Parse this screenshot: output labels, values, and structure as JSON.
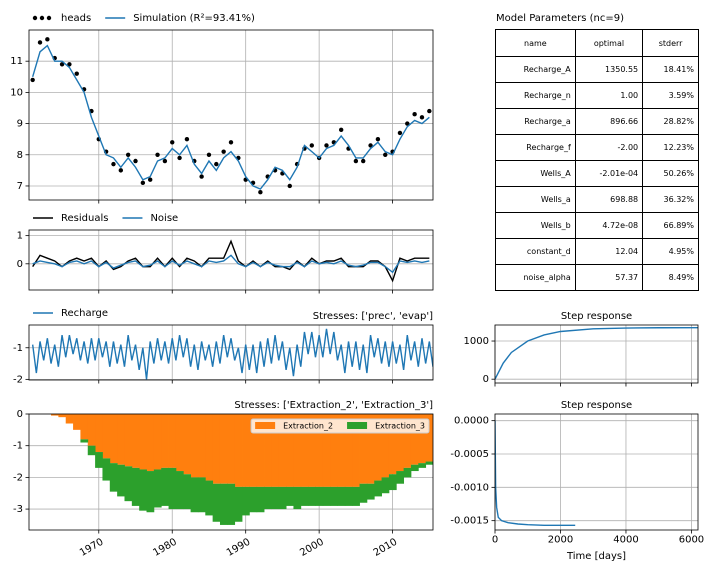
{
  "chart_data": [
    {
      "type": "line",
      "x": [
        1961,
        1962,
        1963,
        1964,
        1965,
        1966,
        1967,
        1968,
        1969,
        1970,
        1971,
        1972,
        1973,
        1974,
        1975,
        1976,
        1977,
        1978,
        1979,
        1980,
        1981,
        1982,
        1983,
        1984,
        1985,
        1986,
        1987,
        1988,
        1989,
        1990,
        1991,
        1992,
        1993,
        1994,
        1995,
        1996,
        1997,
        1998,
        1999,
        2000,
        2001,
        2002,
        2003,
        2004,
        2005,
        2006,
        2007,
        2008,
        2009,
        2010,
        2011,
        2012,
        2013,
        2014,
        2015
      ],
      "series": [
        {
          "name": "heads",
          "type": "scatter",
          "color": "#000000",
          "values": [
            10.4,
            11.6,
            11.7,
            11.1,
            10.9,
            10.9,
            10.6,
            10.1,
            9.4,
            8.5,
            8.1,
            7.7,
            7.5,
            8.0,
            7.8,
            7.1,
            7.2,
            8.0,
            7.8,
            8.4,
            7.9,
            8.5,
            7.8,
            7.3,
            8.0,
            7.7,
            8.1,
            8.4,
            7.9,
            7.2,
            7.1,
            6.8,
            7.3,
            7.5,
            7.4,
            7.0,
            7.7,
            8.2,
            8.3,
            7.9,
            8.3,
            8.4,
            8.8,
            8.2,
            7.8,
            7.8,
            8.3,
            8.5,
            8.0,
            8.1,
            8.7,
            9.0,
            9.3,
            9.2,
            9.4
          ]
        },
        {
          "name": "Simulation (R²=93.41%)",
          "type": "line",
          "color": "#1f77b4",
          "values": [
            10.5,
            11.3,
            11.5,
            11.0,
            11.0,
            10.8,
            10.4,
            10.0,
            9.2,
            8.6,
            8.0,
            7.9,
            7.6,
            7.9,
            7.6,
            7.2,
            7.3,
            7.8,
            7.9,
            8.2,
            8.0,
            8.3,
            7.7,
            7.4,
            7.8,
            7.5,
            7.9,
            8.1,
            7.8,
            7.3,
            7.0,
            6.9,
            7.2,
            7.6,
            7.5,
            7.2,
            7.6,
            8.3,
            8.1,
            7.9,
            8.2,
            8.3,
            8.6,
            8.3,
            7.9,
            7.9,
            8.2,
            8.4,
            8.1,
            8.0,
            8.5,
            8.9,
            9.1,
            9.0,
            9.2
          ]
        }
      ],
      "xlim": [
        1960.5,
        2015.5
      ],
      "ylim": [
        6.55,
        12.0
      ],
      "yticks": [
        7,
        8,
        9,
        10,
        11
      ],
      "grid": true,
      "legend": "above"
    },
    {
      "type": "line",
      "x": [
        1961,
        1962,
        1963,
        1964,
        1965,
        1966,
        1967,
        1968,
        1969,
        1970,
        1971,
        1972,
        1973,
        1974,
        1975,
        1976,
        1977,
        1978,
        1979,
        1980,
        1981,
        1982,
        1983,
        1984,
        1985,
        1986,
        1987,
        1988,
        1989,
        1990,
        1991,
        1992,
        1993,
        1994,
        1995,
        1996,
        1997,
        1998,
        1999,
        2000,
        2001,
        2002,
        2003,
        2004,
        2005,
        2006,
        2007,
        2008,
        2009,
        2010,
        2011,
        2012,
        2013,
        2014,
        2015
      ],
      "series": [
        {
          "name": "Residuals",
          "color": "#000000",
          "values": [
            -0.1,
            0.3,
            0.2,
            0.1,
            -0.1,
            0.1,
            0.2,
            0.1,
            0.2,
            -0.1,
            0.1,
            -0.2,
            -0.1,
            0.1,
            0.2,
            -0.1,
            -0.1,
            0.2,
            -0.1,
            0.2,
            -0.1,
            0.2,
            0.1,
            -0.1,
            0.2,
            0.2,
            0.2,
            0.8,
            0.1,
            -0.1,
            0.1,
            -0.1,
            0.1,
            -0.1,
            -0.1,
            -0.2,
            0.1,
            -0.1,
            0.2,
            0.0,
            0.1,
            0.1,
            0.2,
            -0.1,
            -0.1,
            -0.1,
            0.1,
            0.1,
            -0.1,
            -0.6,
            0.2,
            0.1,
            0.2,
            0.2,
            0.2
          ]
        },
        {
          "name": "Noise",
          "color": "#1f77b4",
          "values": [
            0.0,
            0.1,
            0.05,
            0.0,
            -0.1,
            0.05,
            0.1,
            0.0,
            0.1,
            -0.1,
            0.05,
            -0.15,
            -0.05,
            0.05,
            0.1,
            -0.1,
            -0.05,
            0.1,
            -0.1,
            0.1,
            -0.05,
            0.1,
            0.0,
            -0.1,
            0.1,
            0.05,
            0.1,
            0.3,
            0.0,
            -0.1,
            0.05,
            -0.1,
            0.05,
            -0.05,
            -0.1,
            -0.1,
            0.05,
            -0.1,
            0.1,
            0.0,
            0.05,
            0.0,
            0.1,
            -0.05,
            -0.1,
            -0.05,
            0.05,
            0.05,
            -0.1,
            -0.3,
            0.1,
            0.05,
            0.1,
            0.05,
            0.1
          ]
        }
      ],
      "xlim": [
        1960.5,
        2015.5
      ],
      "ylim": [
        -0.93,
        1.2
      ],
      "yticks": [
        0,
        1
      ],
      "grid": true,
      "legend": "above"
    },
    {
      "type": "line",
      "title": "Stresses: ['prec', 'evap']",
      "title_loc": "right",
      "x": [
        1961,
        1961.5,
        1962,
        1962.5,
        1963,
        1963.5,
        1964,
        1964.5,
        1965,
        1965.5,
        1966,
        1966.5,
        1967,
        1967.5,
        1968,
        1968.5,
        1969,
        1969.5,
        1970,
        1970.5,
        1971,
        1971.5,
        1972,
        1972.5,
        1973,
        1973.5,
        1974,
        1974.5,
        1975,
        1975.5,
        1976,
        1976.5,
        1977,
        1977.5,
        1978,
        1978.5,
        1979,
        1979.5,
        1980,
        1980.5,
        1981,
        1981.5,
        1982,
        1982.5,
        1983,
        1983.5,
        1984,
        1984.5,
        1985,
        1985.5,
        1986,
        1986.5,
        1987,
        1987.5,
        1988,
        1988.5,
        1989,
        1989.5,
        1990,
        1990.5,
        1991,
        1991.5,
        1992,
        1992.5,
        1993,
        1993.5,
        1994,
        1994.5,
        1995,
        1995.5,
        1996,
        1996.5,
        1997,
        1997.5,
        1998,
        1998.5,
        1999,
        1999.5,
        2000,
        2000.5,
        2001,
        2001.5,
        2002,
        2002.5,
        2003,
        2003.5,
        2004,
        2004.5,
        2005,
        2005.5,
        2006,
        2006.5,
        2007,
        2007.5,
        2008,
        2008.5,
        2009,
        2009.5,
        2010,
        2010.5,
        2011,
        2011.5,
        2012,
        2012.5,
        2013,
        2013.5,
        2014,
        2014.5,
        2015,
        2015.5
      ],
      "series": [
        {
          "name": "Recharge",
          "color": "#1f77b4",
          "values": [
            -0.9,
            -1.8,
            -0.8,
            -1.4,
            -0.7,
            -1.5,
            -0.9,
            -1.6,
            -0.6,
            -1.3,
            -0.6,
            -1.2,
            -0.7,
            -1.4,
            -0.8,
            -1.5,
            -0.7,
            -1.4,
            -0.7,
            -1.3,
            -0.8,
            -1.6,
            -0.8,
            -1.5,
            -0.9,
            -1.6,
            -0.6,
            -1.4,
            -0.9,
            -1.7,
            -1.0,
            -2.0,
            -0.8,
            -1.5,
            -0.7,
            -1.4,
            -0.8,
            -1.5,
            -0.7,
            -1.4,
            -0.6,
            -1.3,
            -0.7,
            -1.6,
            -0.9,
            -1.7,
            -0.8,
            -1.4,
            -0.9,
            -1.6,
            -0.8,
            -1.5,
            -0.6,
            -1.3,
            -0.7,
            -1.4,
            -1.0,
            -1.8,
            -0.9,
            -1.7,
            -0.9,
            -1.8,
            -0.8,
            -1.6,
            -0.7,
            -1.5,
            -0.6,
            -1.4,
            -0.8,
            -1.7,
            -1.0,
            -1.9,
            -0.9,
            -1.6,
            -0.5,
            -1.2,
            -0.5,
            -1.3,
            -0.6,
            -1.3,
            -0.4,
            -1.2,
            -0.5,
            -1.4,
            -0.9,
            -1.8,
            -0.8,
            -1.6,
            -0.8,
            -1.7,
            -0.9,
            -1.8,
            -0.6,
            -1.3,
            -0.7,
            -1.5,
            -0.8,
            -1.6,
            -0.8,
            -1.5,
            -0.9,
            -1.7,
            -0.6,
            -1.4,
            -0.8,
            -1.6,
            -0.7,
            -1.5,
            -0.8,
            -1.6
          ]
        }
      ],
      "xlim": [
        1960.5,
        2015.5
      ],
      "ylim": [
        -2.02,
        -0.28
      ],
      "yticks": [
        -2,
        -1
      ],
      "grid": true,
      "legend": "above"
    },
    {
      "type": "line",
      "title": "Step response",
      "title_loc": "center",
      "x": [
        0,
        250,
        500,
        1000,
        1500,
        2000,
        3000,
        4000,
        5000,
        6200
      ],
      "series": [
        {
          "name": "Step response",
          "color": "#1f77b4",
          "values": [
            0,
            420,
            700,
            1000,
            1160,
            1250,
            1320,
            1340,
            1348,
            1350
          ]
        }
      ],
      "xlim": [
        0,
        6200
      ],
      "ylim": [
        -100,
        1420
      ],
      "yticks": [
        0,
        1000
      ],
      "grid": true
    },
    {
      "type": "area",
      "stacked": true,
      "title": "Stresses: ['Extraction_2', 'Extraction_3']",
      "title_loc": "right",
      "x": [
        1961,
        1962,
        1963,
        1964,
        1965,
        1966,
        1967,
        1968,
        1969,
        1970,
        1971,
        1972,
        1973,
        1974,
        1975,
        1976,
        1977,
        1978,
        1979,
        1980,
        1981,
        1982,
        1983,
        1984,
        1985,
        1986,
        1987,
        1988,
        1989,
        1990,
        1991,
        1992,
        1993,
        1994,
        1995,
        1996,
        1997,
        1998,
        1999,
        2000,
        2001,
        2002,
        2003,
        2004,
        2005,
        2006,
        2007,
        2008,
        2009,
        2010,
        2011,
        2012,
        2013,
        2014,
        2015
      ],
      "series": [
        {
          "name": "Extraction_2",
          "color": "#ff7f0e",
          "values": [
            0,
            0,
            0,
            -0.05,
            -0.1,
            -0.3,
            -0.5,
            -0.8,
            -1.0,
            -1.2,
            -1.4,
            -1.55,
            -1.6,
            -1.65,
            -1.7,
            -1.75,
            -1.8,
            -1.75,
            -1.7,
            -1.7,
            -1.8,
            -1.9,
            -2.0,
            -2.0,
            -2.1,
            -2.2,
            -2.2,
            -2.2,
            -2.3,
            -2.3,
            -2.3,
            -2.3,
            -2.3,
            -2.3,
            -2.3,
            -2.3,
            -2.3,
            -2.3,
            -2.3,
            -2.3,
            -2.3,
            -2.3,
            -2.3,
            -2.3,
            -2.3,
            -2.2,
            -2.2,
            -2.1,
            -2.0,
            -1.9,
            -1.8,
            -1.7,
            -1.6,
            -1.55,
            -1.5
          ]
        },
        {
          "name": "Extraction_3",
          "color": "#2ca02c",
          "values": [
            0,
            0,
            0,
            0,
            0,
            0,
            0,
            -0.1,
            -0.3,
            -0.5,
            -0.7,
            -0.9,
            -1.0,
            -1.1,
            -1.2,
            -1.3,
            -1.3,
            -1.2,
            -1.2,
            -1.3,
            -1.2,
            -1.1,
            -1.1,
            -1.1,
            -1.1,
            -1.2,
            -1.3,
            -1.3,
            -1.1,
            -0.9,
            -0.8,
            -0.8,
            -0.7,
            -0.7,
            -0.7,
            -0.6,
            -0.7,
            -0.6,
            -0.6,
            -0.6,
            -0.6,
            -0.6,
            -0.6,
            -0.6,
            -0.6,
            -0.6,
            -0.5,
            -0.5,
            -0.5,
            -0.5,
            -0.4,
            -0.3,
            -0.2,
            -0.15,
            -0.1
          ]
        }
      ],
      "xlim": [
        1960.5,
        2015.5
      ],
      "ylim": [
        -3.66,
        0
      ],
      "yticks": [
        0,
        -1,
        -2,
        -3
      ],
      "xticks": [
        1970,
        1980,
        1990,
        2000,
        2010
      ],
      "xtick_rotation": 30,
      "grid": true,
      "legend": "upper right"
    },
    {
      "type": "line",
      "title": "Step response",
      "title_loc": "center",
      "xlabel": "Time [days]",
      "x": [
        0,
        20,
        50,
        100,
        200,
        400,
        700,
        1000,
        1500,
        2000,
        2450
      ],
      "series": [
        {
          "name": "Step response",
          "color": "#1f77b4",
          "values": [
            0,
            -0.001,
            -0.0013,
            -0.00145,
            -0.0015,
            -0.00153,
            -0.00155,
            -0.00156,
            -0.00157,
            -0.00157,
            -0.00157
          ]
        }
      ],
      "xlim": [
        0,
        6200
      ],
      "ylim": [
        -0.00164,
        0.0001
      ],
      "yticks": [
        {
          "value": 0,
          "label": "0.0000"
        },
        {
          "value": -0.0005,
          "label": "-0.0005"
        },
        {
          "value": -0.001,
          "label": "-0.0010"
        },
        {
          "value": -0.0015,
          "label": "-0.0015"
        }
      ],
      "xticks": [
        0,
        2000,
        4000,
        6000
      ],
      "grid": true
    }
  ],
  "table": {
    "title": "Model Parameters (nc=9)",
    "columns": [
      "name",
      "optimal",
      "stderr"
    ],
    "rows": [
      [
        "Recharge_A",
        "1350.55",
        "18.41%"
      ],
      [
        "Recharge_n",
        "1.00",
        "3.59%"
      ],
      [
        "Recharge_a",
        "896.66",
        "28.82%"
      ],
      [
        "Recharge_f",
        "-2.00",
        "12.23%"
      ],
      [
        "Wells_A",
        "-2.01e-04",
        "50.26%"
      ],
      [
        "Wells_a",
        "698.88",
        "36.32%"
      ],
      [
        "Wells_b",
        "4.72e-08",
        "66.89%"
      ],
      [
        "constant_d",
        "12.04",
        "4.95%"
      ],
      [
        "noise_alpha",
        "57.37",
        "8.49%"
      ]
    ]
  }
}
